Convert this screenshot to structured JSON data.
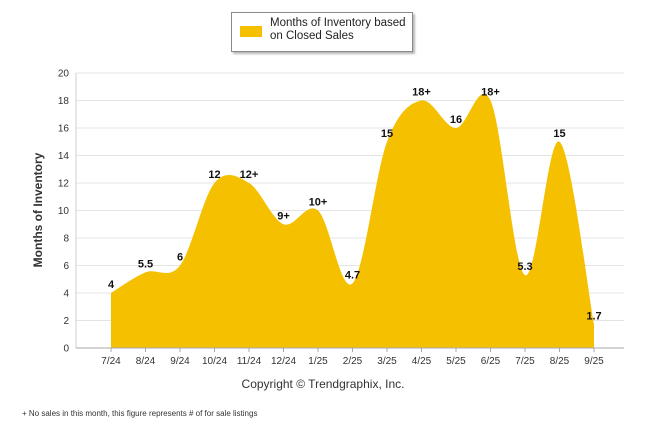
{
  "chart_data": {
    "type": "area",
    "title": "",
    "xlabel": "",
    "ylabel": "Months of Inventory",
    "ylim": [
      0,
      20
    ],
    "ytick_step": 2,
    "grid": true,
    "legend": "top-center",
    "categories": [
      "7/24",
      "8/24",
      "9/24",
      "10/24",
      "11/24",
      "12/24",
      "1/25",
      "2/25",
      "3/25",
      "4/25",
      "5/25",
      "6/25",
      "7/25",
      "8/25",
      "9/25"
    ],
    "series": [
      {
        "name": "Months of Inventory based on Closed Sales",
        "color": "#f5c000",
        "values": [
          4,
          5.5,
          6,
          12,
          12,
          9,
          10,
          4.7,
          15,
          18,
          16,
          18,
          5.3,
          15,
          1.7
        ],
        "labels": [
          "4",
          "5.5",
          "6",
          "12",
          "12+",
          "9+",
          "10+",
          "4.7",
          "15",
          "18+",
          "16",
          "18+",
          "5.3",
          "15",
          "1.7"
        ]
      }
    ]
  },
  "legend": {
    "line1": "Months of Inventory based",
    "line2": "on Closed Sales"
  },
  "copyright": "Copyright © Trendgraphix, Inc.",
  "footnote": "+  No sales in this month, this figure represents # of for sale listings"
}
